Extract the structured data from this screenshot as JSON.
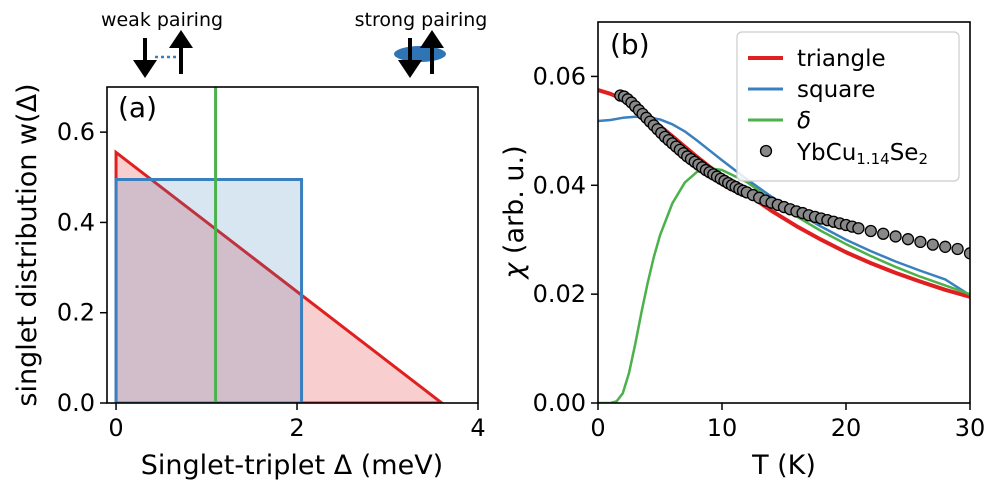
{
  "colors": {
    "triangle": "#e02020",
    "square": "#3a80bf",
    "delta": "#4bb14b",
    "data_marker": "#888888",
    "data_edge": "#000000"
  },
  "header": {
    "weak_pairing": "weak pairing",
    "strong_pairing": "strong pairing"
  },
  "chart_data": [
    {
      "panel": "(a)",
      "type": "area",
      "title": "",
      "xlabel": "Singlet-triplet Δ (meV)",
      "ylabel": "singlet distribution w(Δ)",
      "xlim": [
        -0.1,
        4
      ],
      "ylim": [
        0,
        0.7
      ],
      "xticks": [
        0,
        2,
        4
      ],
      "xtick_labels": [
        "0",
        "2",
        "4"
      ],
      "yticks": [
        0.0,
        0.2,
        0.4,
        0.6
      ],
      "ytick_labels": [
        "0.0",
        "0.2",
        "0.4",
        "0.6"
      ],
      "grid": false,
      "series": [
        {
          "name": "triangle",
          "shape": "triangle",
          "x": [
            0,
            0,
            3.6
          ],
          "y": [
            0,
            0.555,
            0
          ]
        },
        {
          "name": "square",
          "shape": "box",
          "x": [
            0,
            0,
            2.05,
            2.05
          ],
          "y": [
            0,
            0.495,
            0.495,
            0
          ]
        },
        {
          "name": "δ",
          "shape": "vline",
          "x": [
            1.1,
            1.1
          ],
          "y": [
            0,
            0.7
          ]
        }
      ]
    },
    {
      "panel": "(b)",
      "type": "line",
      "title": "",
      "xlabel": "T (K)",
      "ylabel_symbol": "χ",
      "ylabel": "(arb. u.)",
      "xlim": [
        0,
        30
      ],
      "ylim": [
        0,
        0.07
      ],
      "xticks": [
        0,
        10,
        20,
        30
      ],
      "xtick_labels": [
        "0",
        "10",
        "20",
        "30"
      ],
      "yticks": [
        0.0,
        0.02,
        0.04,
        0.06
      ],
      "ytick_labels": [
        "0.00",
        "0.02",
        "0.04",
        "0.06"
      ],
      "grid": false,
      "legend_position": "top-right",
      "legend": {
        "triangle": "triangle",
        "square": "square",
        "delta": "δ",
        "data_main": "YbCu",
        "data_sub1": "1.14",
        "data_mid": "Se",
        "data_sub2": "2"
      },
      "series": [
        {
          "name": "triangle",
          "x": [
            0,
            1,
            2,
            3,
            4,
            5,
            6,
            7,
            8,
            9,
            10,
            12,
            14,
            16,
            18,
            20,
            22,
            24,
            26,
            28,
            30
          ],
          "y": [
            0.0575,
            0.0568,
            0.0558,
            0.0544,
            0.0527,
            0.0509,
            0.049,
            0.0471,
            0.0452,
            0.0434,
            0.0417,
            0.0384,
            0.0353,
            0.0325,
            0.03,
            0.0277,
            0.0257,
            0.0239,
            0.0223,
            0.0208,
            0.0195
          ]
        },
        {
          "name": "square",
          "x": [
            0,
            1,
            2,
            3,
            4,
            5,
            6,
            7,
            8,
            9,
            10,
            12,
            14,
            16,
            18,
            20,
            22,
            24,
            26,
            28,
            30
          ],
          "y": [
            0.0518,
            0.052,
            0.0524,
            0.0526,
            0.0525,
            0.0521,
            0.0512,
            0.0499,
            0.0482,
            0.0464,
            0.0446,
            0.0411,
            0.0379,
            0.035,
            0.0324,
            0.03,
            0.0279,
            0.026,
            0.0243,
            0.0227,
            0.0198
          ]
        },
        {
          "name": "δ",
          "x": [
            0,
            1,
            1.5,
            2,
            2.5,
            3,
            3.5,
            4,
            4.5,
            5,
            6,
            7,
            8,
            9,
            10,
            12,
            14,
            16,
            18,
            20,
            22,
            24,
            26,
            28,
            30
          ],
          "y": [
            0.0,
            0.0,
            0.0003,
            0.0018,
            0.0055,
            0.0108,
            0.0166,
            0.022,
            0.0268,
            0.0308,
            0.0367,
            0.0405,
            0.0425,
            0.0431,
            0.0428,
            0.0406,
            0.0373,
            0.0343,
            0.0316,
            0.0292,
            0.027,
            0.025,
            0.0232,
            0.0216,
            0.02
          ]
        },
        {
          "name": "YbCu1.14Se2",
          "marker": "circle",
          "x": [
            1.8,
            2.1,
            2.4,
            2.7,
            3.0,
            3.3,
            3.6,
            3.9,
            4.2,
            4.5,
            4.8,
            5.1,
            5.4,
            5.7,
            6.0,
            6.3,
            6.6,
            6.9,
            7.2,
            7.5,
            7.8,
            8.1,
            8.4,
            8.7,
            9.0,
            9.3,
            9.6,
            9.9,
            10.2,
            10.5,
            10.8,
            11.1,
            11.4,
            11.7,
            12.0,
            12.5,
            13.0,
            13.5,
            14.0,
            14.5,
            15.0,
            15.5,
            16.0,
            16.5,
            17.0,
            17.5,
            18.0,
            18.5,
            19.0,
            19.5,
            20.0,
            20.5,
            21.0,
            22.0,
            23.0,
            24.0,
            25.0,
            26.0,
            27.0,
            28.0,
            29.0,
            30.0
          ],
          "y": [
            0.0565,
            0.0563,
            0.0558,
            0.0552,
            0.0545,
            0.0538,
            0.0531,
            0.0524,
            0.0517,
            0.051,
            0.0503,
            0.0496,
            0.0489,
            0.0483,
            0.0477,
            0.0471,
            0.0465,
            0.0459,
            0.0453,
            0.0448,
            0.0443,
            0.0438,
            0.0433,
            0.0428,
            0.0424,
            0.042,
            0.0416,
            0.0412,
            0.0408,
            0.0404,
            0.04,
            0.0397,
            0.0393,
            0.039,
            0.0387,
            0.0382,
            0.0377,
            0.0372,
            0.0368,
            0.0364,
            0.036,
            0.0356,
            0.0352,
            0.0349,
            0.0345,
            0.0342,
            0.0339,
            0.0336,
            0.0333,
            0.033,
            0.0327,
            0.0324,
            0.0321,
            0.0316,
            0.0311,
            0.0306,
            0.0301,
            0.0296,
            0.0291,
            0.0287,
            0.0283,
            0.0275
          ]
        }
      ]
    }
  ]
}
